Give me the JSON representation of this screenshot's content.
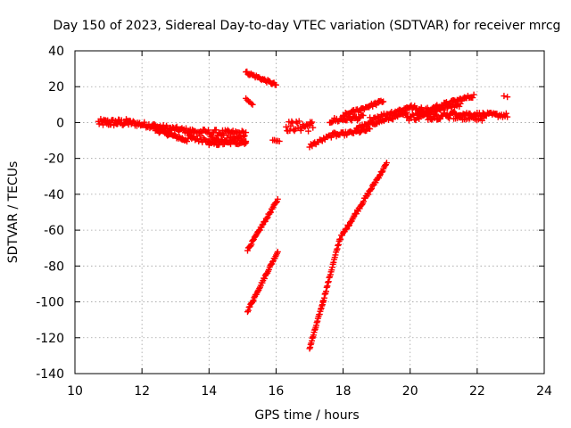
{
  "chart_data": {
    "type": "scatter",
    "title": "Day 150 of 2023, Sidereal Day-to-day VTEC variation (SDTVAR) for receiver mrcg",
    "xlabel": "GPS time / hours",
    "ylabel": "SDTVAR / TECUs",
    "xlim": [
      10,
      24
    ],
    "ylim": [
      -140,
      40
    ],
    "xticks": [
      10,
      12,
      14,
      16,
      18,
      20,
      22,
      24
    ],
    "yticks": [
      -140,
      -120,
      -100,
      -80,
      -60,
      -40,
      -20,
      0,
      20,
      40
    ],
    "xtick_labels": [
      "10",
      "12",
      "14",
      "16",
      "18",
      "20",
      "22",
      "24"
    ],
    "ytick_labels": [
      "-140",
      "-120",
      "-100",
      "-80",
      "-60",
      "-40",
      "-20",
      "0",
      "20",
      "40"
    ],
    "grid": true,
    "marker": "+",
    "color": "#ff0000",
    "segments": [
      {
        "x0": 10.7,
        "x1": 11.6,
        "y0": 0,
        "y1": 0,
        "count": 40,
        "jitter": 2
      },
      {
        "x0": 11.6,
        "x1": 12.4,
        "y0": 0,
        "y1": -2,
        "count": 30,
        "jitter": 1.5
      },
      {
        "x0": 12.3,
        "x1": 13.5,
        "y0": -2,
        "y1": -5,
        "count": 40,
        "jitter": 1.5
      },
      {
        "x0": 12.4,
        "x1": 13.2,
        "y0": -4,
        "y1": -9,
        "count": 30,
        "jitter": 1
      },
      {
        "x0": 13.2,
        "x1": 15.1,
        "y0": -9,
        "y1": -9,
        "count": 55,
        "jitter": 2
      },
      {
        "x0": 13.4,
        "x1": 15.1,
        "y0": -5,
        "y1": -6,
        "count": 45,
        "jitter": 1.5
      },
      {
        "x0": 14.0,
        "x1": 15.1,
        "y0": -12,
        "y1": -11,
        "count": 30,
        "jitter": 1
      },
      {
        "x0": 15.1,
        "x1": 16.0,
        "y0": 28,
        "y1": 21,
        "count": 30,
        "jitter": 0.8
      },
      {
        "x0": 15.1,
        "x1": 15.3,
        "y0": 13,
        "y1": 10,
        "count": 6,
        "jitter": 0.5
      },
      {
        "x0": 15.9,
        "x1": 16.1,
        "y0": -10,
        "y1": -10,
        "count": 5,
        "jitter": 0.5
      },
      {
        "x0": 15.15,
        "x1": 16.05,
        "y0": -71,
        "y1": -43,
        "count": 40,
        "jitter": 0.6
      },
      {
        "x0": 15.15,
        "x1": 16.05,
        "y0": -105,
        "y1": -72,
        "count": 42,
        "jitter": 0.6
      },
      {
        "x0": 16.3,
        "x1": 17.1,
        "y0": -2,
        "y1": -2,
        "count": 30,
        "jitter": 3
      },
      {
        "x0": 17.0,
        "x1": 17.4,
        "y0": -126,
        "y1": -100,
        "count": 25,
        "jitter": 0.6
      },
      {
        "x0": 17.4,
        "x1": 17.9,
        "y0": -100,
        "y1": -65,
        "count": 28,
        "jitter": 0.6
      },
      {
        "x0": 17.9,
        "x1": 19.3,
        "y0": -65,
        "y1": -23,
        "count": 60,
        "jitter": 0.8
      },
      {
        "x0": 17.0,
        "x1": 17.8,
        "y0": -13,
        "y1": -6,
        "count": 22,
        "jitter": 1
      },
      {
        "x0": 17.6,
        "x1": 18.6,
        "y0": 1,
        "y1": 3,
        "count": 30,
        "jitter": 1.5
      },
      {
        "x0": 17.8,
        "x1": 18.8,
        "y0": -7,
        "y1": -4,
        "count": 30,
        "jitter": 1
      },
      {
        "x0": 18.0,
        "x1": 19.2,
        "y0": 4,
        "y1": 12,
        "count": 35,
        "jitter": 1
      },
      {
        "x0": 18.4,
        "x1": 19.9,
        "y0": -3,
        "y1": 5,
        "count": 45,
        "jitter": 1
      },
      {
        "x0": 18.8,
        "x1": 19.9,
        "y0": 2,
        "y1": 8,
        "count": 30,
        "jitter": 1
      },
      {
        "x0": 19.9,
        "x1": 20.8,
        "y0": 9,
        "y1": 5,
        "count": 28,
        "jitter": 1.5
      },
      {
        "x0": 19.9,
        "x1": 21.2,
        "y0": 3,
        "y1": 4,
        "count": 40,
        "jitter": 2
      },
      {
        "x0": 20.2,
        "x1": 21.5,
        "y0": 6,
        "y1": 10,
        "count": 38,
        "jitter": 1.5
      },
      {
        "x0": 20.8,
        "x1": 21.9,
        "y0": 9,
        "y1": 15,
        "count": 32,
        "jitter": 1
      },
      {
        "x0": 21.2,
        "x1": 22.9,
        "y0": 5,
        "y1": 4,
        "count": 50,
        "jitter": 1.2
      },
      {
        "x0": 21.3,
        "x1": 22.2,
        "y0": 2,
        "y1": 2,
        "count": 18,
        "jitter": 1
      },
      {
        "x0": 22.8,
        "x1": 22.9,
        "y0": 15,
        "y1": 14,
        "count": 2,
        "jitter": 0.3
      }
    ]
  }
}
